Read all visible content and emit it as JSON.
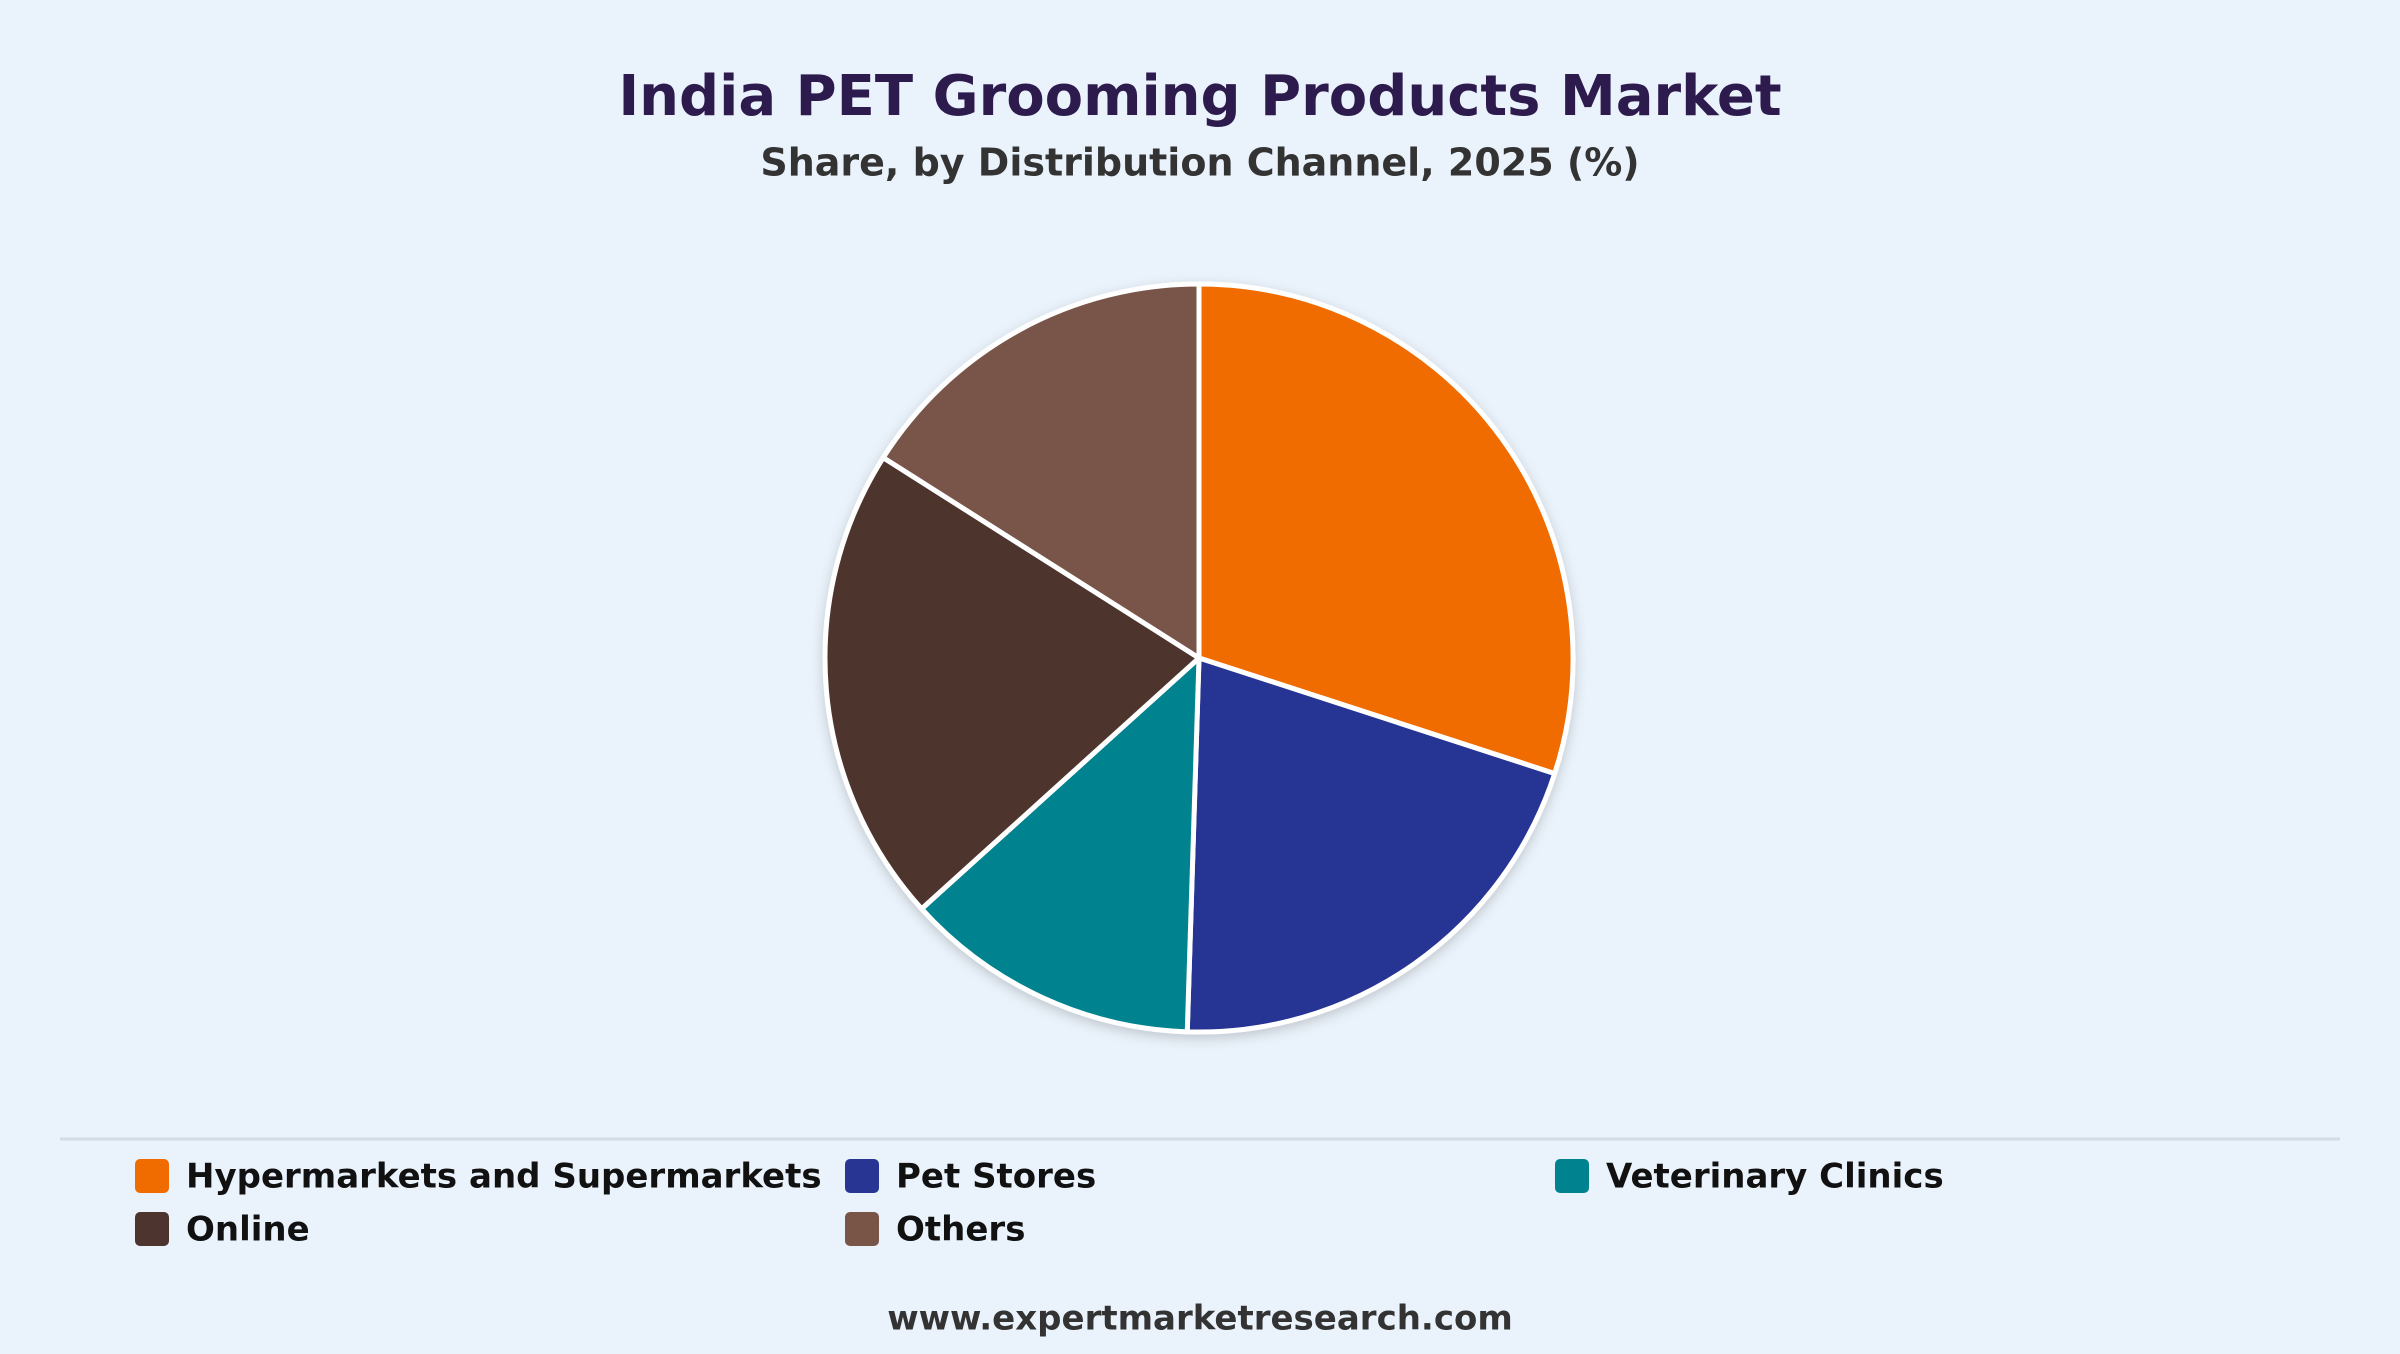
{
  "chart_data": {
    "type": "pie",
    "title": "India PET Grooming Products Market",
    "subtitle": "Share, by Distribution Channel, 2025 (%)",
    "categories": [
      "Hypermarkets and Supermarkets",
      "Pet Stores",
      "Veterinary Clinics",
      "Online",
      "Others"
    ],
    "values": [
      30,
      20.5,
      12.8,
      20.7,
      16
    ],
    "colors": [
      "#f06c00",
      "#283593",
      "#00838f",
      "#4e342e",
      "#795548"
    ],
    "legend": "bottom",
    "source": "www.expertmarketresearch.com"
  }
}
